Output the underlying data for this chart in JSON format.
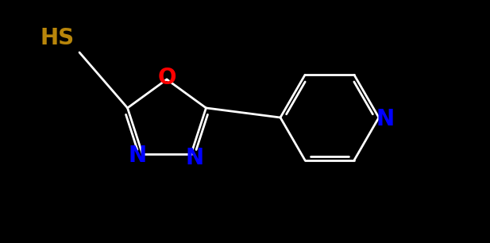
{
  "background_color": "#000000",
  "hs_color": "#b8860b",
  "o_color": "#ff0000",
  "n_color": "#0000ff",
  "bond_color": "#ffffff",
  "label_hs": "HS",
  "label_o": "O",
  "label_n1": "N",
  "label_n2": "N",
  "label_n3": "N",
  "figsize": [
    6.17,
    3.06
  ],
  "dpi": 100
}
